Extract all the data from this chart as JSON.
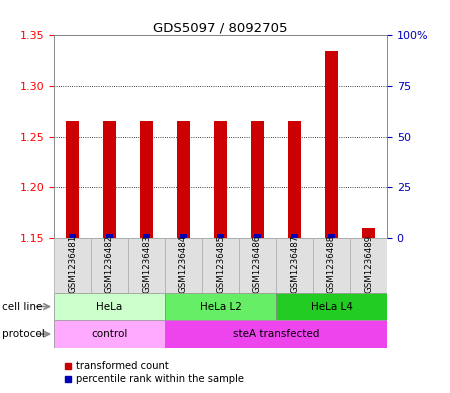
{
  "title": "GDS5097 / 8092705",
  "samples": [
    "GSM1236481",
    "GSM1236482",
    "GSM1236483",
    "GSM1236484",
    "GSM1236485",
    "GSM1236486",
    "GSM1236487",
    "GSM1236488",
    "GSM1236489"
  ],
  "red_values": [
    1.265,
    1.265,
    1.265,
    1.265,
    1.265,
    1.265,
    1.265,
    1.335,
    1.16
  ],
  "blue_values": [
    2,
    2,
    2,
    2,
    2,
    2,
    2,
    2,
    0
  ],
  "ylim_left": [
    1.15,
    1.35
  ],
  "ylim_right": [
    0,
    100
  ],
  "yticks_left": [
    1.15,
    1.2,
    1.25,
    1.3,
    1.35
  ],
  "yticks_right": [
    0,
    25,
    50,
    75,
    100
  ],
  "ytick_labels_right": [
    "0",
    "25",
    "50",
    "75",
    "100%"
  ],
  "cell_line_groups": [
    {
      "label": "HeLa",
      "start": 0,
      "end": 3,
      "color": "#ccffcc"
    },
    {
      "label": "HeLa L2",
      "start": 3,
      "end": 6,
      "color": "#66ee66"
    },
    {
      "label": "HeLa L4",
      "start": 6,
      "end": 9,
      "color": "#22cc22"
    }
  ],
  "protocol_groups": [
    {
      "label": "control",
      "start": 0,
      "end": 3,
      "color": "#ffaaff"
    },
    {
      "label": "steA transfected",
      "start": 3,
      "end": 9,
      "color": "#ee44ee"
    }
  ],
  "legend_red": "transformed count",
  "legend_blue": "percentile rank within the sample",
  "red_color": "#cc0000",
  "blue_color": "#0000bb",
  "bar_width": 0.35,
  "plot_bg": "#ffffff"
}
